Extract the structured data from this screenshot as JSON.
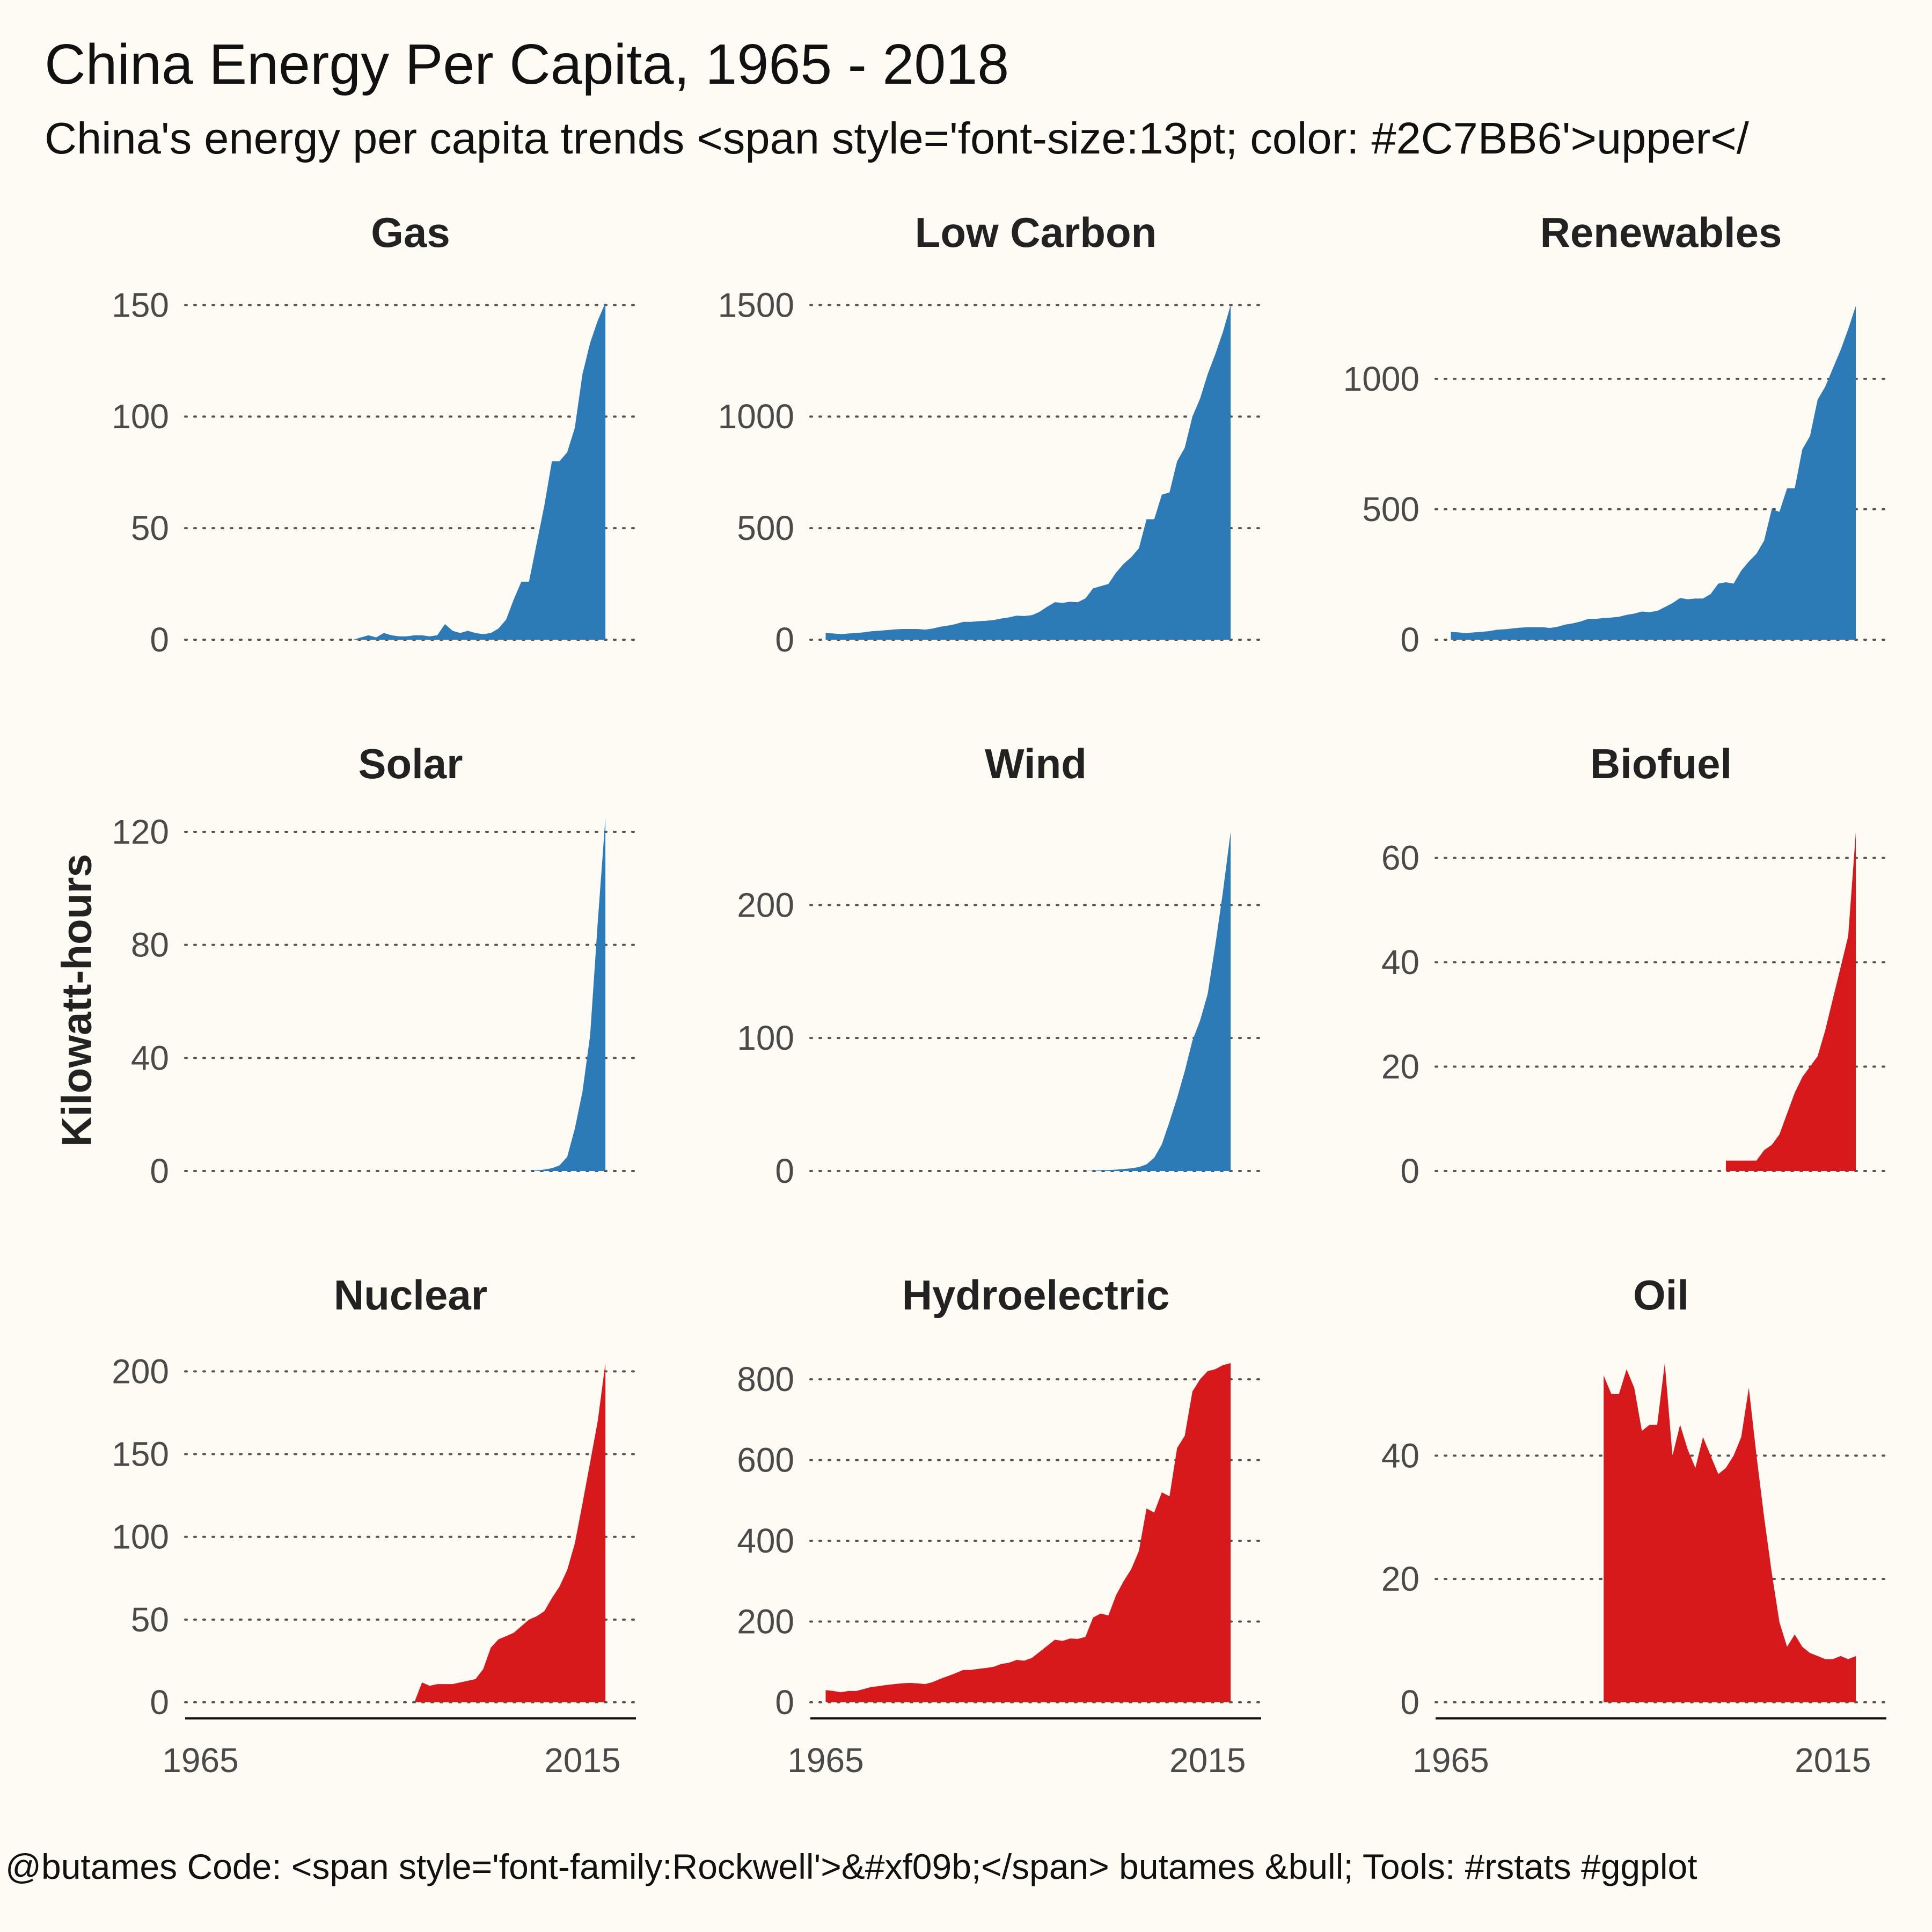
{
  "title": "China Energy Per Capita, 1965 - 2018",
  "subtitle": "China's energy per capita trends <span style='font-size:13pt; color: #2C7BB6'>upper</",
  "caption": "@butames Code: <span style='font-family:Rockwell'>&#xf09b;</span> butames &bull; Tools: #rstats #ggplot",
  "colors": {
    "upper": "#2C7BB6",
    "lower": "#D7191C",
    "background": "#FDFBF3",
    "grid": "#555555"
  },
  "chart_data": {
    "type": "area",
    "ylabel": "Kilowatt-hours",
    "x_ticks": [
      1965,
      2015
    ],
    "x_range": [
      1963,
      2022
    ],
    "panels": [
      {
        "name": "Gas",
        "color": "#2C7BB6",
        "ylim": [
          0,
          152
        ],
        "y_ticks": [
          0,
          50,
          100,
          150
        ],
        "x": [
          1985,
          1986,
          1987,
          1988,
          1989,
          1990,
          1991,
          1992,
          1993,
          1994,
          1995,
          1996,
          1997,
          1998,
          1999,
          2000,
          2001,
          2002,
          2003,
          2004,
          2005,
          2006,
          2007,
          2008,
          2009,
          2010,
          2011,
          2012,
          2013,
          2014,
          2015,
          2016,
          2017,
          2018
        ],
        "values": [
          0,
          1,
          2,
          1,
          3,
          2,
          1.5,
          1.5,
          2,
          2,
          1.5,
          2,
          7,
          4,
          3,
          4,
          3,
          2.5,
          3,
          5,
          9,
          18,
          26,
          26,
          43,
          60,
          80,
          80,
          84,
          95,
          119,
          133,
          143,
          151
        ]
      },
      {
        "name": "Low Carbon",
        "color": "#2C7BB6",
        "ylim": [
          0,
          1520
        ],
        "y_ticks": [
          0,
          500,
          1000,
          1500
        ],
        "x": [
          1965,
          1966,
          1967,
          1968,
          1969,
          1970,
          1971,
          1972,
          1973,
          1974,
          1975,
          1976,
          1977,
          1978,
          1979,
          1980,
          1981,
          1982,
          1983,
          1984,
          1985,
          1986,
          1987,
          1988,
          1989,
          1990,
          1991,
          1992,
          1993,
          1994,
          1995,
          1996,
          1997,
          1998,
          1999,
          2000,
          2001,
          2002,
          2003,
          2004,
          2005,
          2006,
          2007,
          2008,
          2009,
          2010,
          2011,
          2012,
          2013,
          2014,
          2015,
          2016,
          2017,
          2018
        ],
        "values": [
          30,
          28,
          25,
          28,
          30,
          33,
          38,
          40,
          43,
          46,
          48,
          48,
          48,
          45,
          50,
          58,
          63,
          70,
          80,
          80,
          83,
          85,
          88,
          95,
          100,
          108,
          106,
          110,
          125,
          148,
          168,
          165,
          170,
          168,
          185,
          230,
          240,
          250,
          300,
          340,
          370,
          410,
          540,
          540,
          650,
          660,
          800,
          860,
          1000,
          1080,
          1190,
          1280,
          1380,
          1500
        ]
      },
      {
        "name": "Renewables",
        "color": "#2C7BB6",
        "ylim": [
          0,
          1300
        ],
        "y_ticks": [
          0,
          500,
          1000
        ],
        "x": [
          1965,
          1966,
          1967,
          1968,
          1969,
          1970,
          1971,
          1972,
          1973,
          1974,
          1975,
          1976,
          1977,
          1978,
          1979,
          1980,
          1981,
          1982,
          1983,
          1984,
          1985,
          1986,
          1987,
          1988,
          1989,
          1990,
          1991,
          1992,
          1993,
          1994,
          1995,
          1996,
          1997,
          1998,
          1999,
          2000,
          2001,
          2002,
          2003,
          2004,
          2005,
          2006,
          2007,
          2008,
          2009,
          2010,
          2011,
          2012,
          2013,
          2014,
          2015,
          2016,
          2017,
          2018
        ],
        "values": [
          30,
          28,
          25,
          28,
          30,
          33,
          38,
          40,
          43,
          46,
          48,
          48,
          48,
          45,
          50,
          58,
          63,
          70,
          80,
          80,
          83,
          85,
          88,
          95,
          100,
          108,
          106,
          110,
          125,
          140,
          160,
          155,
          158,
          158,
          175,
          215,
          220,
          215,
          265,
          300,
          330,
          380,
          500,
          490,
          580,
          580,
          730,
          780,
          920,
          970,
          1040,
          1110,
          1190,
          1280
        ]
      },
      {
        "name": "Solar",
        "color": "#2C7BB6",
        "ylim": [
          0,
          120
        ],
        "y_ticks": [
          0,
          40,
          80,
          120
        ],
        "x": [
          2000,
          2001,
          2002,
          2003,
          2004,
          2005,
          2006,
          2007,
          2008,
          2009,
          2010,
          2011,
          2012,
          2013,
          2014,
          2015,
          2016,
          2017,
          2018
        ],
        "values": [
          0,
          0,
          0,
          0,
          0,
          0,
          0,
          0,
          0,
          0.2,
          0.5,
          1,
          2,
          5,
          15,
          28,
          48,
          88,
          125
        ]
      },
      {
        "name": "Wind",
        "color": "#2C7BB6",
        "ylim": [
          0,
          255
        ],
        "y_ticks": [
          0,
          100,
          200
        ],
        "x": [
          1990,
          1991,
          1992,
          1993,
          1994,
          1995,
          1996,
          1997,
          1998,
          1999,
          2000,
          2001,
          2002,
          2003,
          2004,
          2005,
          2006,
          2007,
          2008,
          2009,
          2010,
          2011,
          2012,
          2013,
          2014,
          2015,
          2016,
          2017,
          2018
        ],
        "values": [
          0,
          0,
          0,
          0,
          0,
          0,
          0,
          0,
          0,
          0,
          0.3,
          0.5,
          0.7,
          1,
          1.5,
          2,
          3,
          5,
          10,
          20,
          37,
          55,
          75,
          98,
          113,
          133,
          170,
          210,
          255
        ]
      },
      {
        "name": "Biofuel",
        "color": "#D7191C",
        "ylim": [
          0,
          65
        ],
        "y_ticks": [
          0,
          20,
          40,
          60
        ],
        "x": [
          2001,
          2002,
          2003,
          2004,
          2005,
          2006,
          2007,
          2008,
          2009,
          2010,
          2011,
          2012,
          2013,
          2014,
          2015,
          2016,
          2017,
          2018
        ],
        "values": [
          2,
          2,
          2,
          2,
          2,
          4,
          5,
          7,
          11,
          15,
          18,
          20,
          22,
          27,
          33,
          39,
          45,
          65
        ]
      },
      {
        "name": "Nuclear",
        "color": "#D7191C",
        "ylim": [
          0,
          205
        ],
        "y_ticks": [
          0,
          50,
          100,
          150,
          200
        ],
        "x": [
          1993,
          1994,
          1995,
          1996,
          1997,
          1998,
          1999,
          2000,
          2001,
          2002,
          2003,
          2004,
          2005,
          2006,
          2007,
          2008,
          2009,
          2010,
          2011,
          2012,
          2013,
          2014,
          2015,
          2016,
          2017,
          2018
        ],
        "values": [
          0,
          12,
          10,
          11,
          11,
          11,
          12,
          13,
          14,
          20,
          33,
          38,
          40,
          42,
          46,
          50,
          52,
          55,
          63,
          70,
          80,
          96,
          120,
          145,
          170,
          205
        ]
      },
      {
        "name": "Hydroelectric",
        "color": "#D7191C",
        "ylim": [
          0,
          840
        ],
        "y_ticks": [
          0,
          200,
          400,
          600,
          800
        ],
        "x": [
          1965,
          1966,
          1967,
          1968,
          1969,
          1970,
          1971,
          1972,
          1973,
          1974,
          1975,
          1976,
          1977,
          1978,
          1979,
          1980,
          1981,
          1982,
          1983,
          1984,
          1985,
          1986,
          1987,
          1988,
          1989,
          1990,
          1991,
          1992,
          1993,
          1994,
          1995,
          1996,
          1997,
          1998,
          1999,
          2000,
          2001,
          2002,
          2003,
          2004,
          2005,
          2006,
          2007,
          2008,
          2009,
          2010,
          2011,
          2012,
          2013,
          2014,
          2015,
          2016,
          2017,
          2018
        ],
        "values": [
          30,
          28,
          25,
          28,
          28,
          33,
          38,
          40,
          43,
          45,
          47,
          48,
          47,
          45,
          50,
          58,
          65,
          72,
          80,
          80,
          83,
          85,
          88,
          95,
          98,
          105,
          103,
          110,
          125,
          140,
          155,
          152,
          158,
          157,
          162,
          210,
          220,
          215,
          265,
          300,
          330,
          375,
          480,
          470,
          520,
          510,
          630,
          660,
          770,
          800,
          820,
          825,
          835,
          840
        ]
      },
      {
        "name": "Oil",
        "color": "#D7191C",
        "ylim": [
          0,
          55
        ],
        "y_ticks": [
          0,
          20,
          40
        ],
        "x": [
          1985,
          1986,
          1987,
          1988,
          1989,
          1990,
          1991,
          1992,
          1993,
          1994,
          1995,
          1996,
          1997,
          1998,
          1999,
          2000,
          2001,
          2002,
          2003,
          2004,
          2005,
          2006,
          2007,
          2008,
          2009,
          2010,
          2011,
          2012,
          2013,
          2014,
          2015,
          2016,
          2017,
          2018
        ],
        "values": [
          53,
          50,
          50,
          54,
          51,
          44,
          45,
          45,
          55,
          40,
          45,
          41,
          38,
          43,
          40,
          37,
          38,
          40,
          43,
          51,
          40,
          30,
          21,
          13,
          9,
          11,
          9,
          8,
          7.5,
          7,
          7,
          7.5,
          7,
          7.5
        ]
      }
    ]
  }
}
